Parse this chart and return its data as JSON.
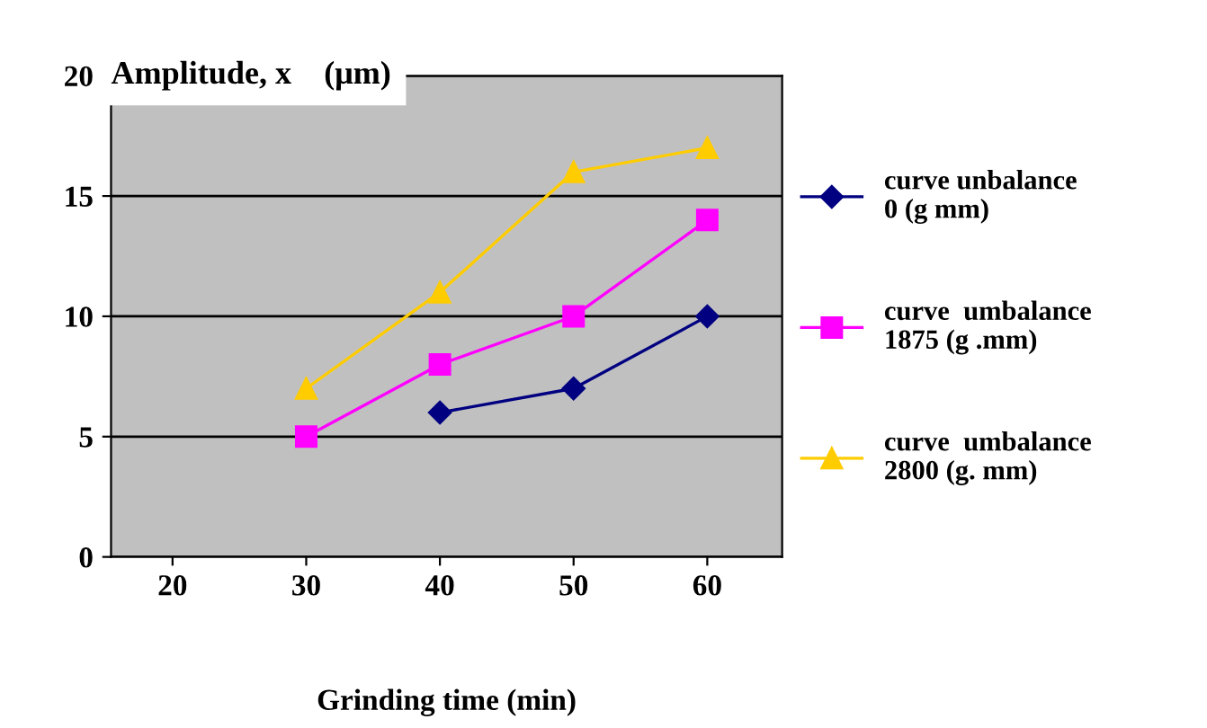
{
  "chart_data": {
    "type": "line",
    "title": "Amplitude, x    (μm)",
    "xlabel": "Grinding time (min)",
    "x": [
      30,
      40,
      50,
      60
    ],
    "series": [
      {
        "name": "curve unbalance\n0 (g mm)",
        "color": "#000080",
        "marker": "diamond",
        "values": [
          null,
          6,
          7,
          10
        ]
      },
      {
        "name": "curve  umbalance\n1875 (g .mm)",
        "color": "#ff00ff",
        "marker": "square",
        "values": [
          5,
          8,
          10,
          14
        ]
      },
      {
        "name": "curve  umbalance\n2800 (g. mm)",
        "color": "#ffcc00",
        "marker": "triangle",
        "values": [
          7,
          11,
          16,
          17
        ]
      }
    ],
    "xlim": [
      15.4,
      65.6
    ],
    "xticks": [
      20,
      30,
      40,
      50,
      60
    ],
    "ylim": [
      0,
      20
    ],
    "yticks": [
      0,
      5,
      10,
      15,
      20
    ],
    "grid": "y",
    "legend": "right",
    "line_style": "solid"
  }
}
